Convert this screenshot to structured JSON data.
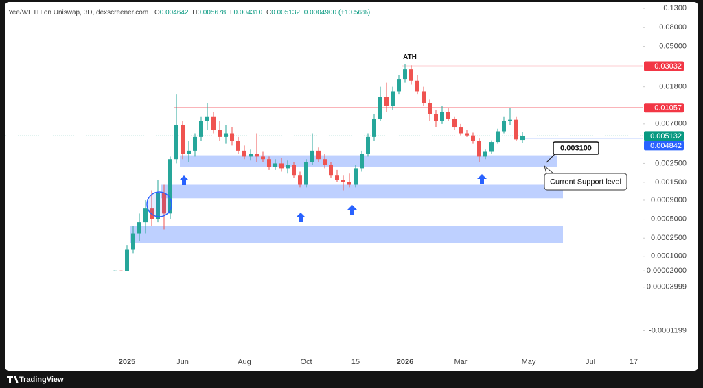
{
  "chart_data": {
    "type": "candlestick",
    "header": {
      "pair": "Yee/WETH on Uniswap, 3D, dexscreener.com",
      "ohlc": [
        {
          "key": "O",
          "value": "0.004642"
        },
        {
          "key": "H",
          "value": "0.005678"
        },
        {
          "key": "L",
          "value": "0.004310"
        },
        {
          "key": "C",
          "value": "0.005132"
        }
      ],
      "change": "0.0004900 (+10.56%)"
    },
    "categories": [
      null,
      null,
      "2025",
      null,
      null,
      null,
      null,
      null,
      null,
      null,
      null,
      "Jun",
      null,
      null,
      null,
      null,
      null,
      null,
      null,
      null,
      null,
      "Aug",
      null,
      null,
      null,
      null,
      null,
      null,
      null,
      null,
      null,
      "Oct",
      null,
      null,
      null,
      null,
      null,
      null,
      null,
      "15",
      null,
      null,
      null,
      null,
      null,
      null,
      null,
      "2026",
      null,
      null,
      null,
      null,
      null,
      null,
      null,
      null,
      "Mar",
      null,
      null,
      null,
      null,
      null,
      null,
      null,
      null,
      null,
      null,
      "May",
      null,
      null,
      null,
      null,
      null,
      null,
      null,
      null,
      null,
      "Jul",
      null,
      null,
      null,
      null,
      null,
      null,
      "17",
      null
    ],
    "open": [
      2e-05,
      2.1e-05,
      2e-05,
      0.00015,
      0.0003,
      0.00045,
      0.0007,
      0.0005,
      0.0011,
      0.0006,
      0.0028,
      0.0068,
      0.0032,
      0.0035,
      0.005,
      0.0075,
      0.0085,
      0.006,
      0.005,
      0.0055,
      0.0045,
      0.0035,
      0.003,
      0.0032,
      0.003,
      0.0028,
      0.0023,
      0.0025,
      0.0022,
      0.0024,
      0.0018,
      0.0014,
      0.0026,
      0.0035,
      0.0028,
      0.0024,
      0.0018,
      0.0016,
      0.0015,
      0.0014,
      0.0022,
      0.0032,
      0.005,
      0.008,
      0.014,
      0.011,
      0.016,
      0.022,
      0.028,
      0.021,
      0.016,
      0.012,
      0.009,
      0.0075,
      0.0095,
      0.008,
      0.0065,
      0.0055,
      0.0052,
      0.0045,
      0.003,
      0.0034,
      0.0044,
      0.0058,
      0.0075,
      0.0078,
      0.004642,
      null,
      null,
      null,
      null,
      null,
      null,
      null,
      null,
      null,
      null,
      null,
      null,
      null,
      null,
      null,
      null,
      null,
      null,
      null
    ],
    "high": [
      2.2e-05,
      2.2e-05,
      0.00018,
      0.0004,
      0.0006,
      0.0009,
      0.0012,
      0.0016,
      0.0014,
      0.003,
      0.015,
      0.0075,
      0.0045,
      0.0055,
      0.0085,
      0.012,
      0.0095,
      0.0075,
      0.0068,
      0.0065,
      0.005,
      0.004,
      0.0036,
      0.0055,
      0.0034,
      0.003,
      0.0028,
      0.0029,
      0.0027,
      0.0026,
      0.002,
      0.0028,
      0.0055,
      0.0038,
      0.0032,
      0.0026,
      0.0021,
      0.0018,
      0.0019,
      0.0024,
      0.0035,
      0.0055,
      0.009,
      0.018,
      0.02,
      0.018,
      0.024,
      0.032,
      0.031,
      0.024,
      0.018,
      0.013,
      0.01,
      0.011,
      0.0105,
      0.0085,
      0.007,
      0.006,
      0.0056,
      0.0048,
      0.0036,
      0.0046,
      0.0062,
      0.0085,
      0.0105,
      0.0085,
      0.005678,
      null,
      null,
      null,
      null,
      null,
      null,
      null,
      null,
      null,
      null,
      null,
      null,
      null,
      null,
      null,
      null,
      null,
      null,
      null
    ],
    "low": [
      1.9e-05,
      2e-05,
      2e-05,
      0.00012,
      0.00022,
      0.0003,
      0.0004,
      0.00045,
      0.00035,
      0.0005,
      0.0025,
      0.0028,
      0.0026,
      0.003,
      0.0045,
      0.006,
      0.0055,
      0.0045,
      0.0042,
      0.004,
      0.0032,
      0.0028,
      0.0027,
      0.0026,
      0.0026,
      0.0021,
      0.0021,
      0.002,
      0.0019,
      0.0017,
      0.0013,
      0.0013,
      0.0024,
      0.0026,
      0.0022,
      0.0017,
      0.0015,
      0.0012,
      0.0013,
      0.0013,
      0.002,
      0.003,
      0.0045,
      0.0075,
      0.0095,
      0.01,
      0.015,
      0.02,
      0.019,
      0.015,
      0.011,
      0.0075,
      0.0065,
      0.007,
      0.0075,
      0.006,
      0.0052,
      0.005,
      0.0042,
      0.0026,
      0.0028,
      0.0032,
      0.0042,
      0.0055,
      0.0068,
      0.0045,
      0.00431,
      null,
      null,
      null,
      null,
      null,
      null,
      null,
      null,
      null,
      null,
      null,
      null,
      null,
      null,
      null,
      null,
      null,
      null,
      null
    ],
    "close": [
      2.1e-05,
      2e-05,
      0.00015,
      0.0003,
      0.00045,
      0.0007,
      0.0005,
      0.0011,
      0.0006,
      0.0028,
      0.0068,
      0.0032,
      0.0035,
      0.005,
      0.0075,
      0.0085,
      0.006,
      0.005,
      0.0055,
      0.0045,
      0.0035,
      0.003,
      0.0032,
      0.003,
      0.0028,
      0.0023,
      0.0025,
      0.0022,
      0.0024,
      0.0018,
      0.0014,
      0.0026,
      0.0035,
      0.0028,
      0.0024,
      0.0018,
      0.0016,
      0.0015,
      0.0014,
      0.0022,
      0.0032,
      0.005,
      0.008,
      0.014,
      0.011,
      0.016,
      0.022,
      0.028,
      0.021,
      0.016,
      0.012,
      0.009,
      0.0075,
      0.0095,
      0.008,
      0.0065,
      0.0055,
      0.0052,
      0.0045,
      0.003,
      0.0034,
      0.0044,
      0.0058,
      0.0075,
      0.0078,
      0.0047,
      0.005132,
      null,
      null,
      null,
      null,
      null,
      null,
      null,
      null,
      null,
      null,
      null,
      null,
      null,
      null,
      null,
      null,
      null,
      null,
      null
    ],
    "up_color": "#26a69a",
    "down_color": "#ef5350",
    "log": true,
    "ylim": [
      -0.000135,
      0.16
    ],
    "yticks": [
      {
        "value": 0.13,
        "label": "0.1300"
      },
      {
        "value": 0.08,
        "label": "0.08000"
      },
      {
        "value": 0.05,
        "label": "0.05000"
      },
      {
        "value": 0.018,
        "label": "0.01800"
      },
      {
        "value": 0.007,
        "label": "0.007000"
      },
      {
        "value": 0.0025,
        "label": "0.002500"
      },
      {
        "value": 0.0015,
        "label": "0.001500"
      },
      {
        "value": 0.0009,
        "label": "0.0009000"
      },
      {
        "value": 0.0005,
        "label": "0.0005000"
      },
      {
        "value": 0.00025,
        "label": "0.0002500"
      },
      {
        "value": 0.0001,
        "label": "0.0001000"
      },
      {
        "value": 2e-05,
        "label": "0.00002000"
      },
      -3.999e-05,
      -0.0001199
    ],
    "zones": [
      {
        "low": 0.0023,
        "high": 0.0031,
        "start": 11,
        "end": 72
      },
      {
        "low": 0.00095,
        "high": 0.0014,
        "start": 8,
        "end": 73
      },
      {
        "low": 0.0002,
        "high": 0.0004,
        "start": 3,
        "end": 73
      }
    ],
    "zone_color": "#2962ff",
    "levels": [
      {
        "value": 0.03032,
        "color": "#f23645",
        "start": 47
      },
      {
        "value": 0.01057,
        "color": "#f23645",
        "start": 10
      }
    ],
    "price_labels": [
      {
        "value": 0.005132,
        "color": "#089981"
      },
      {
        "value": 0.004842,
        "color": "#2962ff"
      }
    ],
    "ath_label": "ATH",
    "ath_index": 47,
    "callout": {
      "value": 0.0031,
      "label": "0.003100"
    },
    "support_note": "Current Support level",
    "footer": "TradingView"
  }
}
